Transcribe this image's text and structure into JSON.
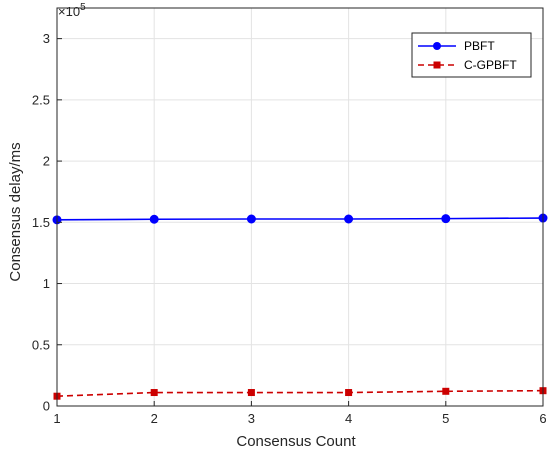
{
  "chart_data": {
    "type": "line",
    "title": "",
    "xlabel": "Consensus Count",
    "ylabel": "Consensus delay/ms",
    "y_multiplier_label": "×10",
    "y_multiplier_exp": "5",
    "xlim": [
      1,
      6
    ],
    "ylim": [
      0,
      3.25
    ],
    "x_ticks": [
      1,
      2,
      3,
      4,
      5,
      6
    ],
    "y_ticks": [
      0,
      0.5,
      1,
      1.5,
      2,
      2.5,
      3
    ],
    "grid": true,
    "legend_position": "top-right",
    "x": [
      1,
      2,
      3,
      4,
      5,
      6
    ],
    "series": [
      {
        "name": "PBFT",
        "values": [
          1.52,
          1.525,
          1.527,
          1.527,
          1.53,
          1.535
        ],
        "color": "#0000ff",
        "line_style": "solid",
        "marker": "circle"
      },
      {
        "name": "C-GPBFT",
        "values": [
          0.08,
          0.11,
          0.11,
          0.11,
          0.12,
          0.125
        ],
        "color": "#cc0000",
        "line_style": "dashed",
        "marker": "square"
      }
    ]
  }
}
